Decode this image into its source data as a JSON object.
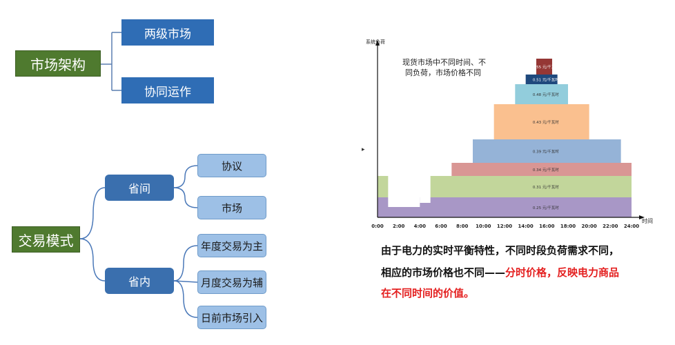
{
  "left": {
    "market_structure": {
      "root": "市场架构",
      "children": [
        "两级市场",
        "协同运作"
      ]
    },
    "trade_mode": {
      "root": "交易模式",
      "inter_province": {
        "label": "省间",
        "children": [
          "协议",
          "市场"
        ]
      },
      "intra_province": {
        "label": "省内",
        "children": [
          "年度交易为主",
          "月度交易为辅",
          "日前市场引入"
        ]
      }
    }
  },
  "chart_data": {
    "type": "area",
    "ylabel": "系统负荷",
    "xlabel": "时间",
    "x_ticks": [
      "0:00",
      "2:00",
      "4:00",
      "6:00",
      "8:00",
      "10:00",
      "12:00",
      "14:00",
      "16:00",
      "18:00",
      "20:00",
      "22:00",
      "24:00"
    ],
    "annotation": "现货市场中不同时间、不同负荷，市场价格不同",
    "price_layers": [
      {
        "label": "0.25 元/千瓦时",
        "color": "#a897c6"
      },
      {
        "label": "0.31 元/千瓦时",
        "color": "#c2d69b"
      },
      {
        "label": "0.34 元/千瓦时",
        "color": "#d99694"
      },
      {
        "label": "0.39 元/千瓦时",
        "color": "#95b3d7"
      },
      {
        "label": "0.43 元/千瓦时",
        "color": "#fac08f"
      },
      {
        "label": "0.48 元/千瓦时",
        "color": "#92cddc"
      },
      {
        "label": "0.51 元/千瓦时",
        "color": "#1f497d"
      },
      {
        "label": "0.55 元/千瓦时",
        "color": "#953735"
      }
    ]
  },
  "caption": {
    "line1": "由于电力的实时平衡特性，不同时段负荷需求不同，",
    "line2_black": "相应的市场价格也不同——",
    "line2_red": "分时价格，反映电力商品",
    "line3_red": "在不同时间的价值。"
  }
}
